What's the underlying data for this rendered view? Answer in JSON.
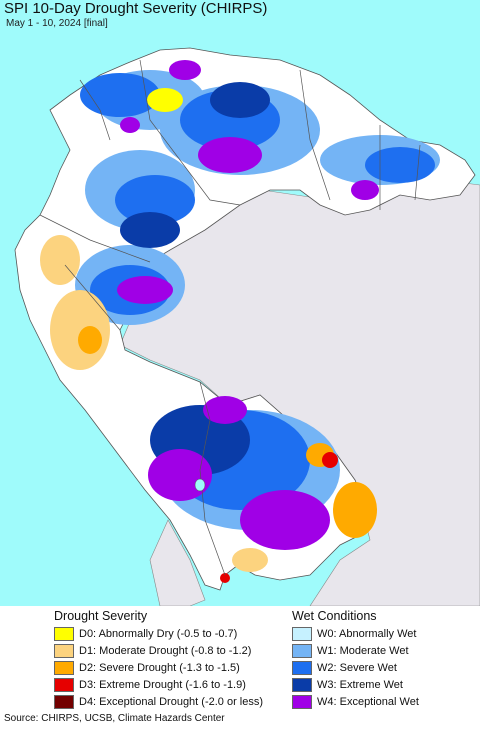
{
  "map": {
    "title": "SPI 10-Day Drought Severity (CHIRPS)",
    "subtitle": "May 1 - 10, 2024 [final]",
    "colors": {
      "ocean": "#9ffbfb",
      "outside_land": "#e8e6ec",
      "neutral_land": "#ffffff",
      "border": "#666666"
    }
  },
  "legend": {
    "drought_title": "Drought Severity",
    "wet_title": "Wet Conditions",
    "drought": [
      {
        "label": "D0: Abnormally Dry (-0.5 to -0.7)",
        "color": "#ffff00"
      },
      {
        "label": "D1: Moderate Drought (-0.8 to -1.2)",
        "color": "#fcd37f"
      },
      {
        "label": "D2: Severe Drought (-1.3 to -1.5)",
        "color": "#ffaa00"
      },
      {
        "label": "D3: Extreme Drought (-1.6 to -1.9)",
        "color": "#e60000"
      },
      {
        "label": "D4: Exceptional Drought (-2.0 or less)",
        "color": "#730000"
      }
    ],
    "wet": [
      {
        "label": "W0: Abnormally Wet",
        "color": "#c6f1ff"
      },
      {
        "label": "W1: Moderate Wet",
        "color": "#74b4f5"
      },
      {
        "label": "W2: Severe Wet",
        "color": "#1e6ff0"
      },
      {
        "label": "W3: Extreme Wet",
        "color": "#0a3ca8"
      },
      {
        "label": "W4: Exceptional Wet",
        "color": "#a000e6"
      }
    ]
  },
  "footer": {
    "source": "Source: CHIRPS, UCSB, Climate Hazards Center"
  }
}
